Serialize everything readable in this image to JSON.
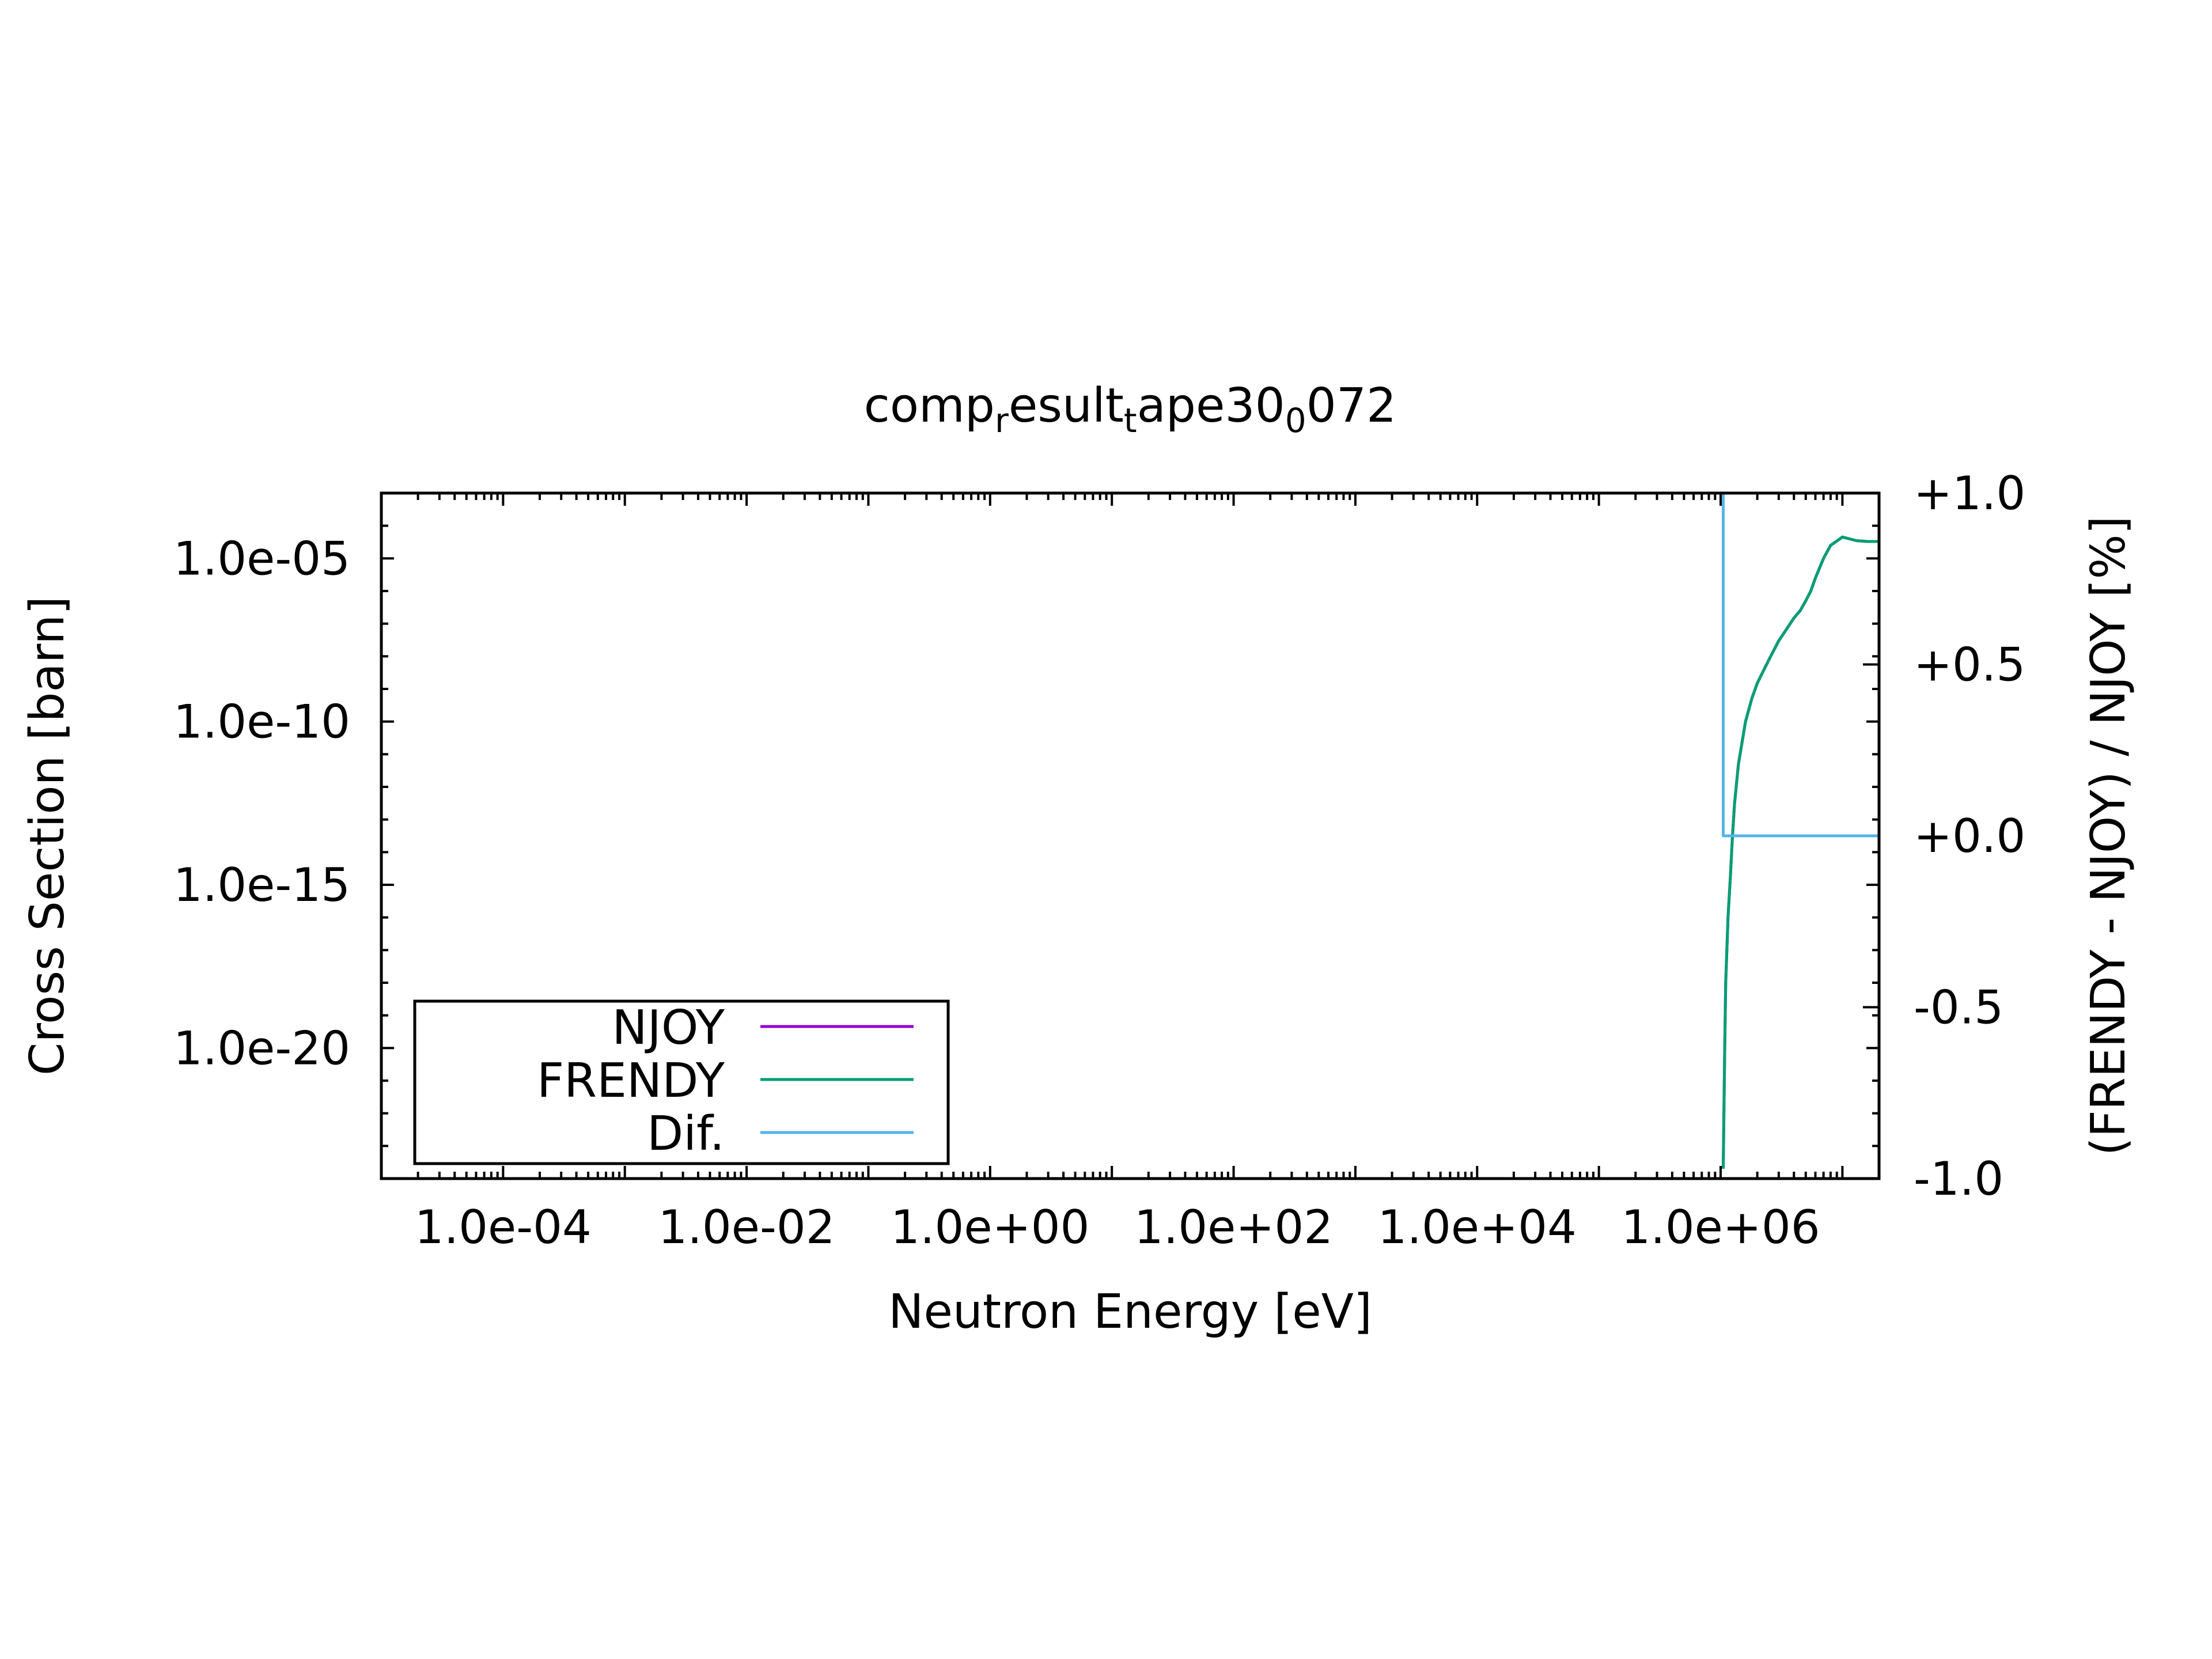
{
  "chart_data": {
    "type": "line",
    "title": {
      "base": "comp",
      "parts": [
        [
          "r",
          "esult"
        ],
        [
          "t",
          "ape30"
        ],
        [
          "0",
          "072"
        ]
      ]
    },
    "xlabel": "Neutron Energy [eV]",
    "ylabel": "Cross Section [barn]",
    "y2label": "(FRENDY - NJOY) / NJOY [%]",
    "xscale": "log",
    "yscale": "log",
    "xlim": [
      1e-05,
      20000000.0
    ],
    "ylim": [
      1e-24,
      0.001
    ],
    "y2lim": [
      -1.0,
      1.0
    ],
    "xticks": [
      {
        "value": 0.0001,
        "label": "1.0e-04"
      },
      {
        "value": 0.01,
        "label": "1.0e-02"
      },
      {
        "value": 1.0,
        "label": "1.0e+00"
      },
      {
        "value": 100.0,
        "label": "1.0e+02"
      },
      {
        "value": 10000.0,
        "label": "1.0e+04"
      },
      {
        "value": 1000000.0,
        "label": "1.0e+06"
      }
    ],
    "yticks": [
      {
        "value": 1e-05,
        "label": "1.0e-05"
      },
      {
        "value": 1e-10,
        "label": "1.0e-10"
      },
      {
        "value": 1e-15,
        "label": "1.0e-15"
      },
      {
        "value": 1e-20,
        "label": "1.0e-20"
      }
    ],
    "y2ticks": [
      {
        "value": 1.0,
        "label": "+1.0"
      },
      {
        "value": 0.5,
        "label": "+0.5"
      },
      {
        "value": 0.0,
        "label": "+0.0"
      },
      {
        "value": -0.5,
        "label": "-0.5"
      },
      {
        "value": -1.0,
        "label": "-1.0"
      }
    ],
    "legend": {
      "position": "bottom-left",
      "entries": [
        "NJOY",
        "FRENDY",
        "Dif."
      ]
    },
    "series": [
      {
        "name": "NJOY",
        "axis": "y",
        "color": "#9400d3",
        "x": [
          1050000.0,
          1080000.0,
          1100000.0,
          1150000.0,
          1200000.0,
          1250000.0,
          1300000.0,
          1400000.0,
          1600000.0,
          1800000.0,
          2000000.0,
          2500000.0,
          3000000.0,
          3500000.0,
          4000000.0,
          4500000.0,
          5000000.0,
          5500000.0,
          6000000.0,
          7000000.0,
          8000000.0,
          10000000.0,
          13000000.0,
          16000000.0,
          20000000.0
        ],
        "y": [
          2e-24,
          1e-20,
          1e-18,
          1e-16,
          1.5e-15,
          3e-14,
          3e-13,
          5e-12,
          1e-10,
          5e-10,
          1.5e-09,
          8e-09,
          3e-08,
          7e-08,
          1.5e-07,
          2.5e-07,
          5e-07,
          1e-06,
          2.5e-06,
          1e-05,
          2.5e-05,
          4.5e-05,
          3.5e-05,
          3.3e-05,
          3.3e-05
        ]
      },
      {
        "name": "FRENDY",
        "axis": "y",
        "color": "#009e73",
        "x": [
          1050000.0,
          1080000.0,
          1100000.0,
          1150000.0,
          1200000.0,
          1250000.0,
          1300000.0,
          1400000.0,
          1600000.0,
          1800000.0,
          2000000.0,
          2500000.0,
          3000000.0,
          3500000.0,
          4000000.0,
          4500000.0,
          5000000.0,
          5500000.0,
          6000000.0,
          7000000.0,
          8000000.0,
          10000000.0,
          13000000.0,
          16000000.0,
          20000000.0
        ],
        "y": [
          2e-24,
          1e-20,
          1e-18,
          1e-16,
          1.5e-15,
          3e-14,
          3e-13,
          5e-12,
          1e-10,
          5e-10,
          1.5e-09,
          8e-09,
          3e-08,
          7e-08,
          1.5e-07,
          2.5e-07,
          5e-07,
          1e-06,
          2.5e-06,
          1e-05,
          2.5e-05,
          4.5e-05,
          3.5e-05,
          3.3e-05,
          3.3e-05
        ]
      },
      {
        "name": "Dif.",
        "axis": "y2",
        "color": "#56b4e9",
        "x": [
          1050000.0,
          1050000.0,
          1100000.0,
          20000000.0
        ],
        "y": [
          1.0,
          0.0,
          0.0,
          0.0
        ]
      }
    ]
  }
}
